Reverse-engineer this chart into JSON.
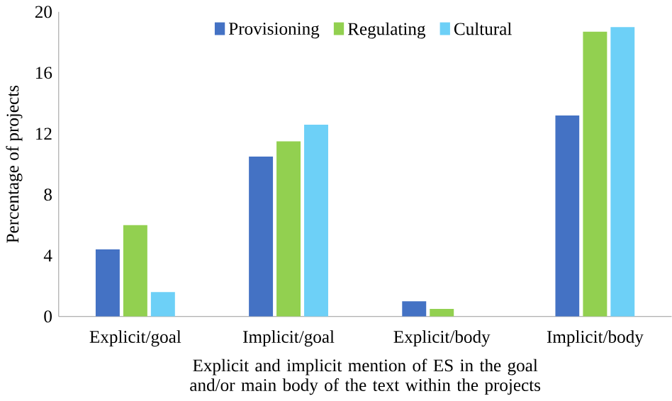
{
  "chart_data": {
    "type": "bar",
    "categories": [
      "Explicit/goal",
      "Implicit/goal",
      "Explicit/body",
      "Implicit/body"
    ],
    "series": [
      {
        "name": "Provisioning",
        "color": "#4472c4",
        "values": [
          4.4,
          10.5,
          1.0,
          13.2
        ]
      },
      {
        "name": "Regulating",
        "color": "#92d050",
        "values": [
          6.0,
          11.5,
          0.5,
          18.7
        ]
      },
      {
        "name": "Cultural",
        "color": "#6dd0f7",
        "values": [
          1.6,
          12.6,
          0,
          19.0
        ]
      }
    ],
    "xlabel": "Explicit and implicit mention of ES in the goal and/or main body of the text within the projects",
    "ylabel": "Percentage of projects",
    "ylim": [
      0,
      20
    ],
    "yticks": [
      0,
      4,
      8,
      12,
      16,
      20
    ],
    "legend": "top"
  }
}
